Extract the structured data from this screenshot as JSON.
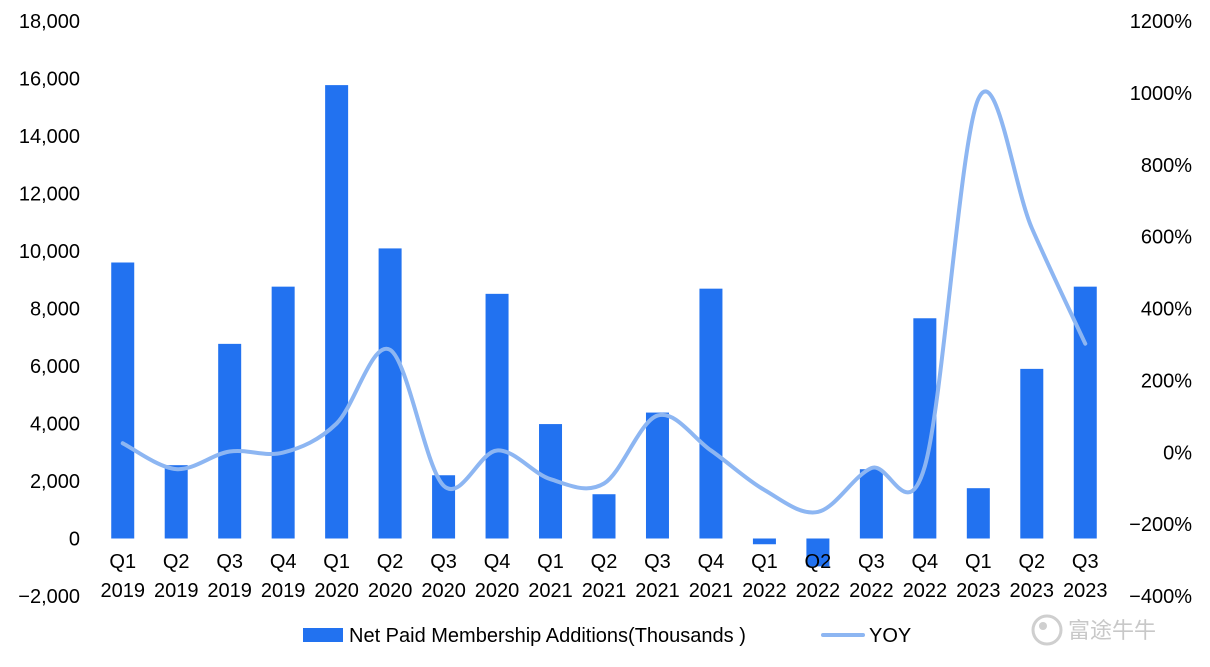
{
  "chart_data": {
    "type": "bar",
    "categories": [
      [
        "Q1",
        "2019"
      ],
      [
        "Q2",
        "2019"
      ],
      [
        "Q3",
        "2019"
      ],
      [
        "Q4",
        "2019"
      ],
      [
        "Q1",
        "2020"
      ],
      [
        "Q2",
        "2020"
      ],
      [
        "Q3",
        "2020"
      ],
      [
        "Q4",
        "2020"
      ],
      [
        "Q1",
        "2021"
      ],
      [
        "Q2",
        "2021"
      ],
      [
        "Q3",
        "2021"
      ],
      [
        "Q4",
        "2021"
      ],
      [
        "Q1",
        "2022"
      ],
      [
        "Q2",
        "2022"
      ],
      [
        "Q3",
        "2022"
      ],
      [
        "Q4",
        "2022"
      ],
      [
        "Q1",
        "2023"
      ],
      [
        "Q2",
        "2023"
      ],
      [
        "Q3",
        "2023"
      ]
    ],
    "series": [
      {
        "name": "Net Paid Membership Additions(Thousands )",
        "type": "bar",
        "axis": "left",
        "color": "#2272F0",
        "values": [
          9600,
          2550,
          6770,
          8760,
          15770,
          10090,
          2200,
          8510,
          3980,
          1540,
          4380,
          8690,
          -200,
          -970,
          2410,
          7660,
          1750,
          5900,
          8760
        ]
      },
      {
        "name": "YOY",
        "type": "line",
        "axis": "right",
        "color": "#8DB6F2",
        "values": [
          25,
          -47,
          2,
          -1,
          80,
          285,
          -93,
          5,
          -75,
          -87,
          102,
          5,
          -105,
          -166,
          -44,
          -39,
          983,
          624,
          302
        ]
      }
    ],
    "y_left": {
      "ticks": [
        "18,000",
        "16,000",
        "14,000",
        "12,000",
        "10,000",
        "8,000",
        "6,000",
        "4,000",
        "2,000",
        "0",
        "−2,000"
      ],
      "ylim": [
        -2000,
        18000
      ]
    },
    "y_right": {
      "ticks": [
        "1200%",
        "1000%",
        "800%",
        "600%",
        "400%",
        "200%",
        "0%",
        "−200%",
        "−400%"
      ],
      "ylim": [
        -400,
        1200
      ]
    },
    "grid": false,
    "legend_position": "bottom"
  },
  "watermark": {
    "text": "富途牛牛",
    "icon": "futu-logo-icon"
  }
}
